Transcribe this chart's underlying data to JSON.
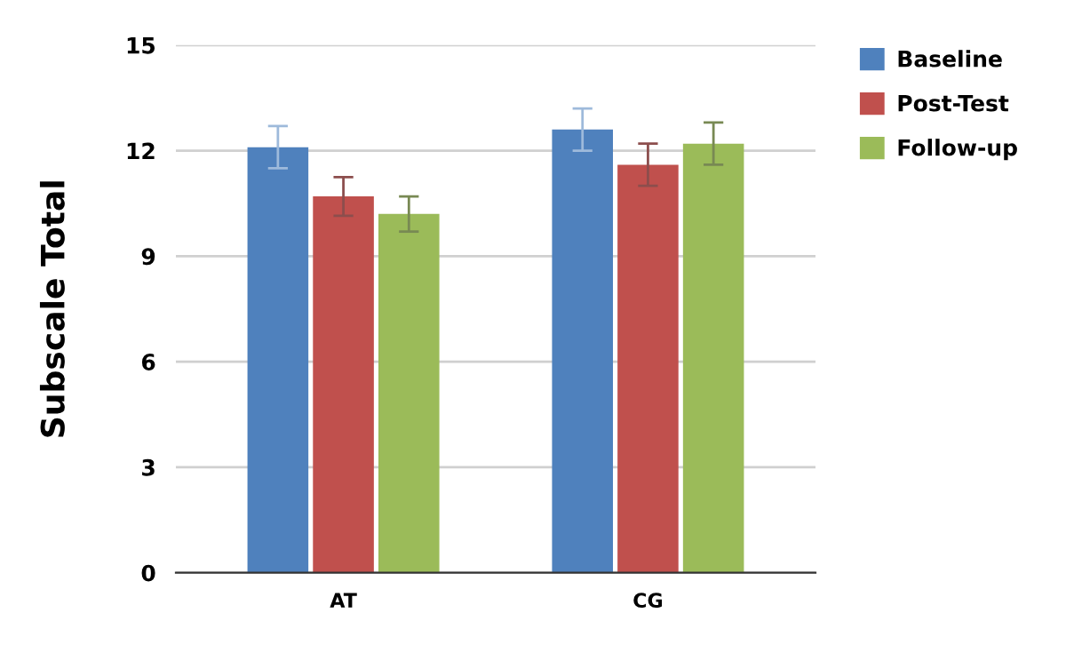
{
  "chart_data": {
    "type": "bar",
    "ylabel": "Subscale Total",
    "categories": [
      "AT",
      "CG"
    ],
    "series": [
      {
        "name": "Baseline",
        "color": "#4f81bd",
        "values": [
          12.1,
          12.6
        ],
        "errors": [
          0.6,
          0.6
        ]
      },
      {
        "name": "Post-Test",
        "color": "#c0504d",
        "values": [
          10.7,
          11.6
        ],
        "errors": [
          0.55,
          0.6
        ]
      },
      {
        "name": "Follow-up",
        "color": "#9bbb59",
        "values": [
          10.2,
          12.2
        ],
        "errors": [
          0.5,
          0.6
        ]
      }
    ],
    "ylim": [
      0,
      15
    ],
    "yticks": [
      0,
      3,
      6,
      9,
      12,
      15
    ],
    "grid": "y",
    "legend": "top right"
  }
}
